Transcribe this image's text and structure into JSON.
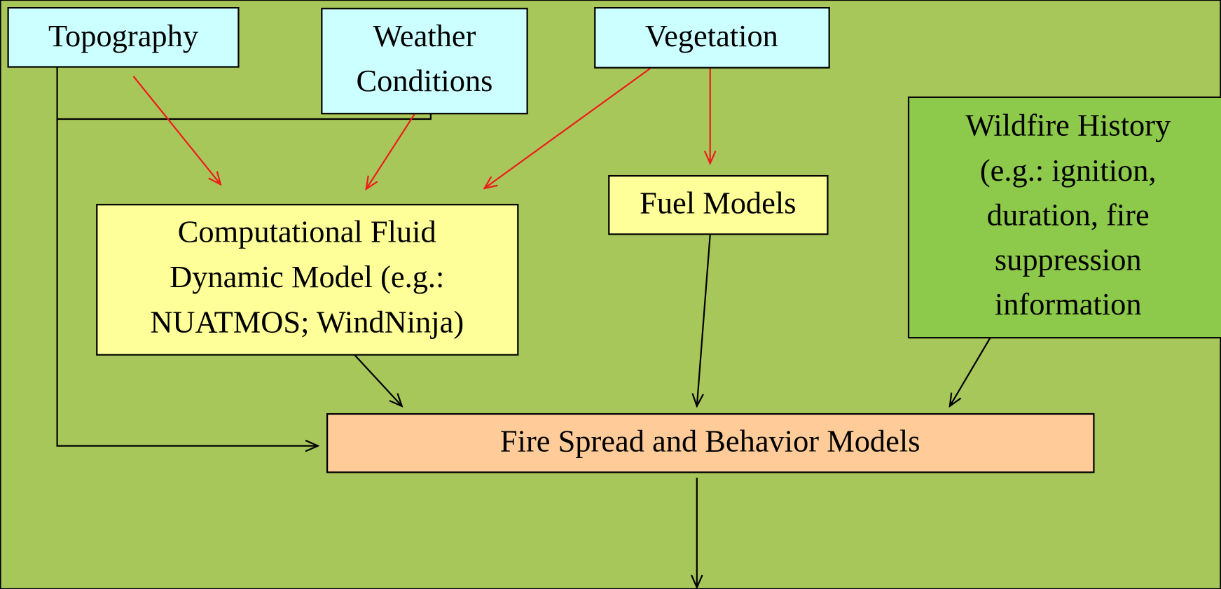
{
  "nodes": [
    {
      "lines": [
        "Topography"
      ]
    },
    {
      "lines": [
        "Weather",
        "Conditions"
      ]
    },
    {
      "lines": [
        "Vegetation"
      ]
    },
    {
      "lines": [
        "Wildfire History",
        "(e.g.: ignition,",
        "duration, fire",
        "suppression",
        "information"
      ]
    },
    {
      "lines": [
        "Computational Fluid",
        "Dynamic Model (e.g.:",
        "NUATMOS; WindNinja)"
      ]
    },
    {
      "lines": [
        "Fuel Models"
      ]
    },
    {
      "lines": [
        "Fire Spread and Behavior Models"
      ]
    }
  ]
}
